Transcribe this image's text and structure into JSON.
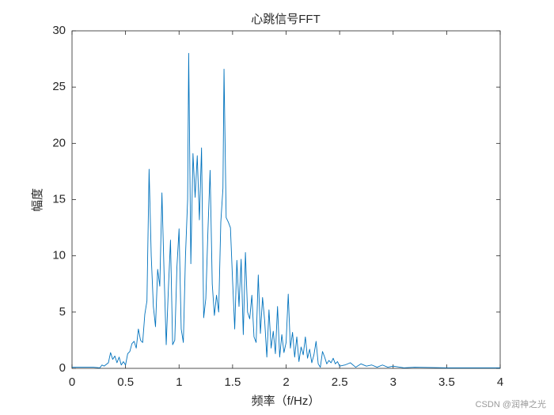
{
  "chart_data": {
    "type": "line",
    "title": "心跳信号FFT",
    "x_label": "频率（f/Hz）",
    "y_label": "幅度",
    "x": [
      0,
      0.2,
      0.26,
      0.28,
      0.3,
      0.34,
      0.36,
      0.38,
      0.4,
      0.42,
      0.44,
      0.46,
      0.48,
      0.5,
      0.52,
      0.54,
      0.56,
      0.58,
      0.6,
      0.62,
      0.64,
      0.66,
      0.68,
      0.7,
      0.72,
      0.74,
      0.76,
      0.78,
      0.8,
      0.82,
      0.84,
      0.86,
      0.88,
      0.9,
      0.92,
      0.94,
      0.96,
      0.98,
      1.0,
      1.02,
      1.04,
      1.06,
      1.08,
      1.09,
      1.11,
      1.13,
      1.15,
      1.17,
      1.19,
      1.21,
      1.23,
      1.25,
      1.27,
      1.29,
      1.31,
      1.33,
      1.35,
      1.37,
      1.39,
      1.41,
      1.42,
      1.44,
      1.46,
      1.48,
      1.5,
      1.52,
      1.54,
      1.56,
      1.58,
      1.6,
      1.62,
      1.64,
      1.66,
      1.68,
      1.7,
      1.72,
      1.74,
      1.76,
      1.78,
      1.8,
      1.82,
      1.84,
      1.86,
      1.88,
      1.9,
      1.92,
      1.94,
      1.96,
      1.98,
      2.0,
      2.02,
      2.04,
      2.06,
      2.08,
      2.1,
      2.12,
      2.14,
      2.16,
      2.18,
      2.2,
      2.22,
      2.24,
      2.26,
      2.28,
      2.3,
      2.32,
      2.34,
      2.36,
      2.38,
      2.4,
      2.42,
      2.44,
      2.46,
      2.48,
      2.5,
      2.55,
      2.6,
      2.65,
      2.7,
      2.75,
      2.8,
      2.85,
      2.9,
      2.95,
      3.0,
      3.1,
      3.2,
      3.5,
      4.0
    ],
    "series": [
      {
        "color": "#0072bd",
        "values": [
          0.1,
          0.1,
          0.05,
          0.3,
          0.2,
          0.5,
          1.4,
          0.8,
          1.1,
          0.5,
          1.0,
          0.3,
          0.6,
          0.3,
          1.3,
          1.5,
          2.2,
          2.4,
          1.8,
          3.5,
          2.5,
          2.3,
          4.8,
          6.0,
          17.7,
          10,
          5.5,
          3.7,
          8.8,
          7.3,
          15.6,
          8.5,
          2.1,
          7,
          11.4,
          2.1,
          2.5,
          9,
          12.4,
          3.5,
          2.3,
          10,
          15,
          28,
          9.3,
          19.1,
          15.2,
          18.9,
          13.2,
          19.6,
          4.5,
          6.2,
          12.3,
          17.6,
          7.5,
          4.7,
          6.5,
          5.0,
          13,
          16,
          26.6,
          13.4,
          13.0,
          12.5,
          7.8,
          3.5,
          9.6,
          5.5,
          9.7,
          3.0,
          10.3,
          5.0,
          4.4,
          6.5,
          2.8,
          2.3,
          8.3,
          3.1,
          6.3,
          4.2,
          1.0,
          5.2,
          1.8,
          3.3,
          1.3,
          5.5,
          1.0,
          3.0,
          1.4,
          2.3,
          6.6,
          1.8,
          3.2,
          1.0,
          2.8,
          0.6,
          1.9,
          1.2,
          2.8,
          0.9,
          1.7,
          0.5,
          1.2,
          2.4,
          0.4,
          0.1,
          1.5,
          1.0,
          0.4,
          0.7,
          0.5,
          0.9,
          0.4,
          0.6,
          0.2,
          0.3,
          0.5,
          0.1,
          0.4,
          0.2,
          0.3,
          0.1,
          0.3,
          0.1,
          0.2,
          0.05,
          0.1,
          0.05,
          0.05
        ]
      }
    ],
    "xlim": [
      0,
      4
    ],
    "ylim": [
      0,
      30
    ],
    "xticks": [
      0,
      0.5,
      1,
      1.5,
      2,
      2.5,
      3,
      3.5,
      4
    ],
    "yticks": [
      0,
      5,
      10,
      15,
      20,
      25,
      30
    ],
    "grid": false,
    "watermark": "CSDN @润神之光"
  }
}
